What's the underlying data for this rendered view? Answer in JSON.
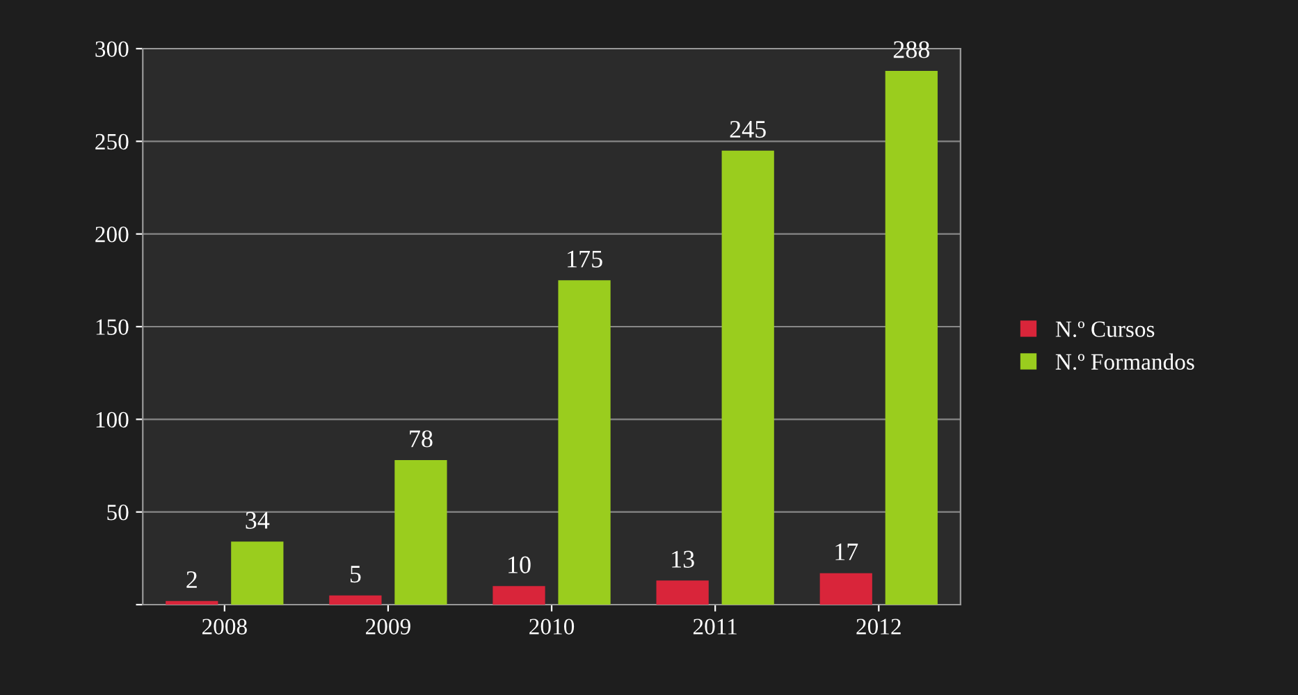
{
  "chart_data": {
    "type": "bar",
    "categories": [
      "2008",
      "2009",
      "2010",
      "2011",
      "2012"
    ],
    "series": [
      {
        "name": "N.º Cursos",
        "color": "#d9253a",
        "values": [
          2,
          5,
          10,
          13,
          17
        ]
      },
      {
        "name": "N.º Formandos",
        "color": "#9acd1e",
        "values": [
          34,
          78,
          175,
          245,
          288
        ]
      }
    ],
    "ylim": [
      0,
      300
    ],
    "yticks": [
      {
        "value": 0,
        "label": null
      },
      50,
      100,
      150,
      200,
      250,
      300
    ],
    "grid": "y",
    "legend": "right",
    "data_labels": true
  }
}
